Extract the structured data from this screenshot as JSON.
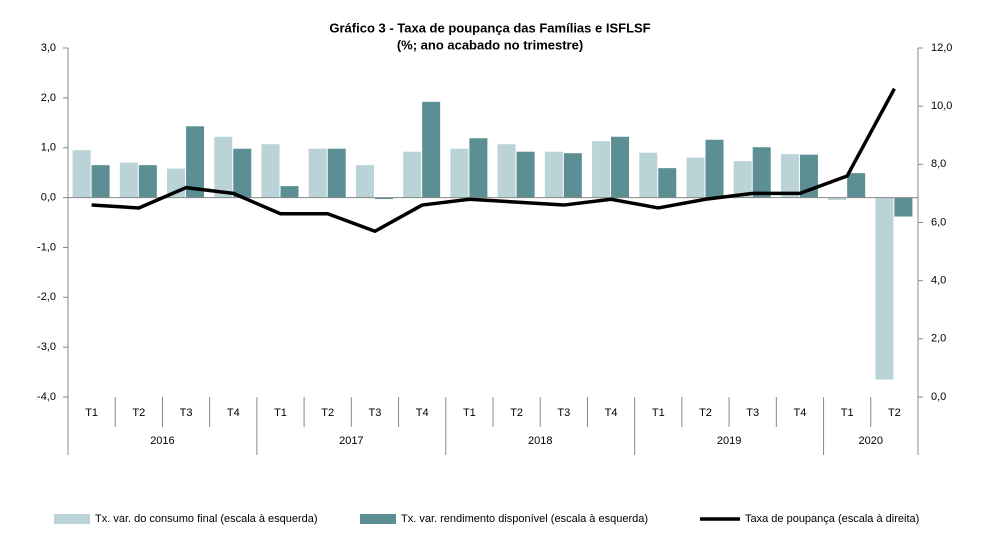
{
  "chart_data": {
    "type": "bar-line",
    "title": "Gráfico  3 - Taxa de poupança das Famílias e ISFLSF",
    "subtitle": "(%; ano acabado no trimestre)",
    "categories": [
      "T1",
      "T2",
      "T3",
      "T4",
      "T1",
      "T2",
      "T3",
      "T4",
      "T1",
      "T2",
      "T3",
      "T4",
      "T1",
      "T2",
      "T3",
      "T4",
      "T1",
      "T2"
    ],
    "years": [
      "2016",
      "2017",
      "2018",
      "2019",
      "2020"
    ],
    "series": [
      {
        "name": "Tx. var. do consumo final (escala à esquerda)",
        "type": "bar",
        "color": "#b9d3d6",
        "values": [
          0.95,
          0.7,
          0.58,
          1.22,
          1.07,
          0.98,
          0.65,
          0.92,
          0.98,
          1.07,
          0.92,
          1.13,
          0.9,
          0.8,
          0.73,
          0.87,
          -0.05,
          -3.65
        ]
      },
      {
        "name": "Tx. var. rendimento disponível (escala à esquerda)",
        "type": "bar",
        "color": "#5b8f94",
        "values": [
          0.65,
          0.65,
          1.43,
          0.98,
          0.23,
          0.98,
          -0.03,
          1.92,
          1.19,
          0.92,
          0.89,
          1.22,
          0.59,
          1.16,
          1.01,
          0.86,
          0.49,
          -0.38
        ]
      },
      {
        "name": "Taxa de poupança (escala à direita)",
        "type": "line",
        "axis": "y2",
        "color": "#000000",
        "values": [
          6.6,
          6.5,
          7.2,
          7.0,
          6.3,
          6.3,
          5.7,
          6.6,
          6.8,
          6.7,
          6.6,
          6.8,
          6.5,
          6.8,
          7.0,
          7.0,
          7.6,
          10.6
        ]
      }
    ],
    "ylim": [
      -4,
      3
    ],
    "yticks": [
      {
        "value": -4,
        "label": "-4,0"
      },
      {
        "value": -3,
        "label": "-3,0"
      },
      {
        "value": -2,
        "label": "-2,0"
      },
      {
        "value": -1,
        "label": "-1,0"
      },
      {
        "value": 0,
        "label": "0,0"
      },
      {
        "value": 1,
        "label": "1,0"
      },
      {
        "value": 2,
        "label": "2,0"
      },
      {
        "value": 3,
        "label": "3,0"
      }
    ],
    "y2lim": [
      0,
      12
    ],
    "y2ticks": [
      {
        "value": 0,
        "label": "0,0"
      },
      {
        "value": 2,
        "label": "2,0"
      },
      {
        "value": 4,
        "label": "4,0"
      },
      {
        "value": 6,
        "label": "6,0"
      },
      {
        "value": 8,
        "label": "8,0"
      },
      {
        "value": 10,
        "label": "10,0"
      },
      {
        "value": 12,
        "label": "12,0"
      }
    ],
    "legend": "bottom"
  }
}
